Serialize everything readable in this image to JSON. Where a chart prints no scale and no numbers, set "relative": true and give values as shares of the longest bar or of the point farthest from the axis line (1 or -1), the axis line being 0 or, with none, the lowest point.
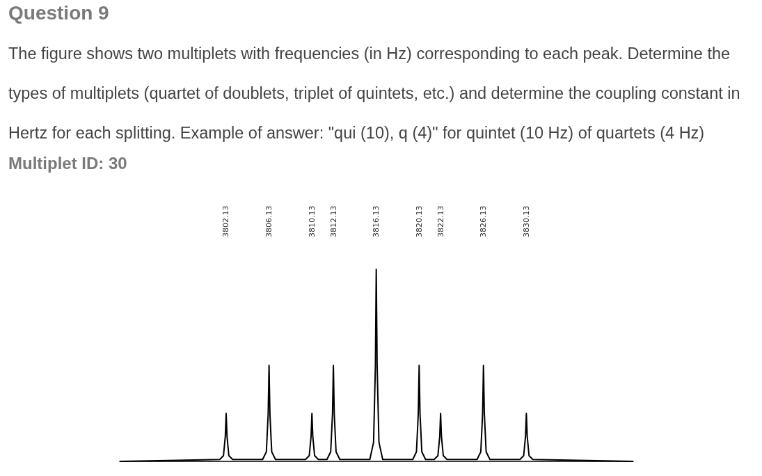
{
  "chart_data": {
    "type": "line",
    "title": "Question 9",
    "subtitle": "The figure shows two multiplets with frequencies (in Hz) corresponding to each peak. Determine the types of multiplets (quartet of doublets, triplet of quintets, etc.) and determine the coupling constant in Hertz for each splitting. Example of answer: \"qui (10), q (4)\" for quintet (10 Hz) of quartets (4 Hz)",
    "annotations": [
      "Multiplet ID: 30"
    ],
    "xticks": [
      3802.13,
      3806.13,
      3810.13,
      3812.13,
      3816.13,
      3820.13,
      3822.13,
      3826.13,
      3830.13
    ],
    "relative": true,
    "xlim": [
      3792.2,
      3840.1
    ],
    "tick_labels": "x",
    "grid": false,
    "marker": "none",
    "line_style": "solid",
    "series": [
      {
        "color": "#000000",
        "x": [
          3792.2,
          3801.53,
          3801.88,
          3802.05,
          3802.13,
          3802.21,
          3802.38,
          3802.73,
          3805.53,
          3805.88,
          3806.05,
          3806.13,
          3806.21,
          3806.38,
          3806.73,
          3809.53,
          3809.88,
          3810.05,
          3810.13,
          3810.21,
          3810.38,
          3810.73,
          3811.53,
          3811.88,
          3812.05,
          3812.13,
          3812.21,
          3812.38,
          3812.73,
          3815.53,
          3815.88,
          3816.05,
          3816.13,
          3816.21,
          3816.38,
          3816.73,
          3819.53,
          3819.88,
          3820.05,
          3820.13,
          3820.21,
          3820.38,
          3820.73,
          3821.53,
          3821.88,
          3822.05,
          3822.13,
          3822.21,
          3822.38,
          3822.73,
          3825.53,
          3825.88,
          3826.05,
          3826.13,
          3826.21,
          3826.38,
          3826.73,
          3829.53,
          3829.88,
          3830.05,
          3830.13,
          3830.21,
          3830.38,
          3830.73,
          3840.1
        ],
        "values": [
          0,
          0.01,
          0.03,
          0.13,
          0.25,
          0.13,
          0.03,
          0.01,
          0.01,
          0.05,
          0.25,
          0.5,
          0.25,
          0.05,
          0.01,
          0.01,
          0.03,
          0.13,
          0.25,
          0.13,
          0.03,
          0.01,
          0.01,
          0.05,
          0.25,
          0.5,
          0.25,
          0.05,
          0.01,
          0.01,
          0.1,
          0.5,
          1,
          0.5,
          0.1,
          0.01,
          0.01,
          0.05,
          0.25,
          0.5,
          0.25,
          0.05,
          0.01,
          0.01,
          0.03,
          0.13,
          0.25,
          0.13,
          0.03,
          0.01,
          0.01,
          0.05,
          0.25,
          0.5,
          0.25,
          0.05,
          0.01,
          0.01,
          0.03,
          0.13,
          0.25,
          0.13,
          0.03,
          0.01,
          0
        ]
      }
    ]
  }
}
